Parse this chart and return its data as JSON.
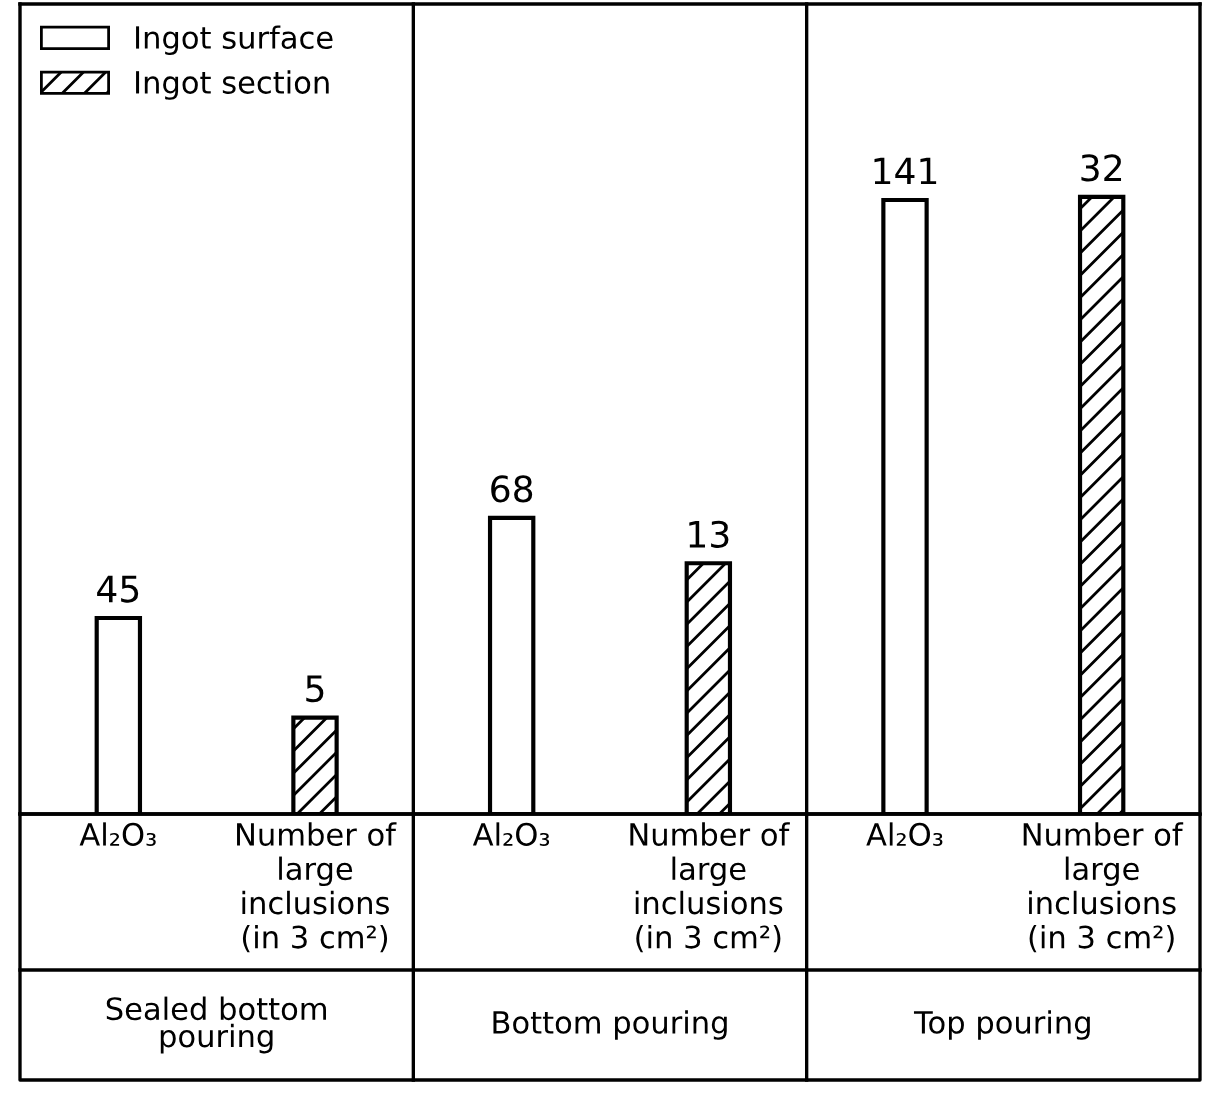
{
  "chart_data": {
    "type": "bar",
    "categories": [
      "Al₂O₃",
      "Number of\nlarge\ninclusions\n(in 3 cm²)",
      "Al₂O₃",
      "Number of\nlarge\ninclusions\n(in 3 cm²)",
      "Al₂O₃",
      "Number of\nlarge\ninclusions\n(in 3 cm²)"
    ],
    "series": [
      {
        "name": "Ingot surface",
        "color": "#ffffff",
        "values": [
          45,
          null,
          68,
          null,
          141,
          null
        ],
        "value_labels": [
          "45",
          null,
          "68",
          null,
          "141",
          null
        ]
      },
      {
        "name": "Ingot section",
        "color": "#000000",
        "axis": "y2",
        "values": [
          null,
          5,
          null,
          13,
          null,
          32
        ],
        "value_labels": [
          null,
          "5",
          null,
          "13",
          null,
          "32"
        ]
      }
    ],
    "ylim": [
      0,
      186
    ],
    "y2lim": [
      0,
      42
    ],
    "tick_labels": "x",
    "legend": "top left",
    "grid": false,
    "annotations": [
      "Sealed bottom\npouring",
      "Bottom pouring",
      "Top pouring"
    ]
  }
}
